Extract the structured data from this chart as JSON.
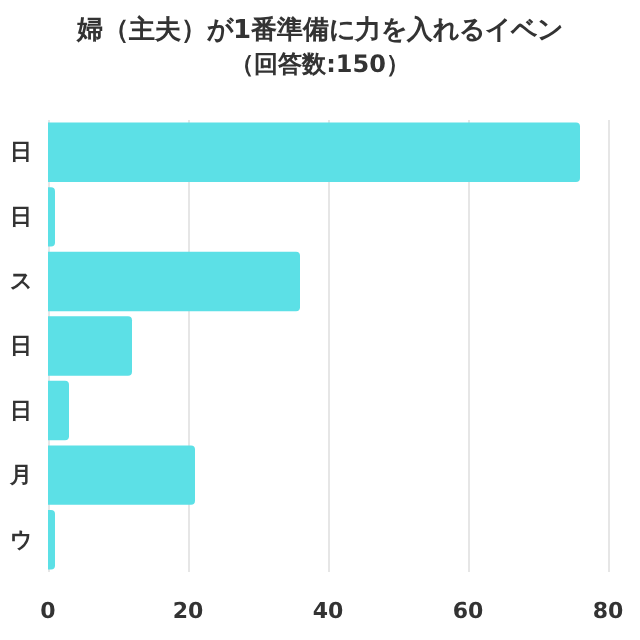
{
  "chart_data": {
    "type": "bar",
    "orientation": "horizontal",
    "title": "婦（主夫）が1番準備に力を入れるイベン",
    "subtitle": "（回答数:150）",
    "categories": [
      "日",
      "日",
      "ス",
      "日",
      "日",
      "月",
      "ウ"
    ],
    "values": [
      76,
      1,
      36,
      12,
      3,
      21,
      1
    ],
    "color": "#5ce0e6",
    "xlim": [
      0,
      80
    ],
    "xticks": [
      0,
      20,
      40,
      60,
      80
    ],
    "grid": "x"
  }
}
